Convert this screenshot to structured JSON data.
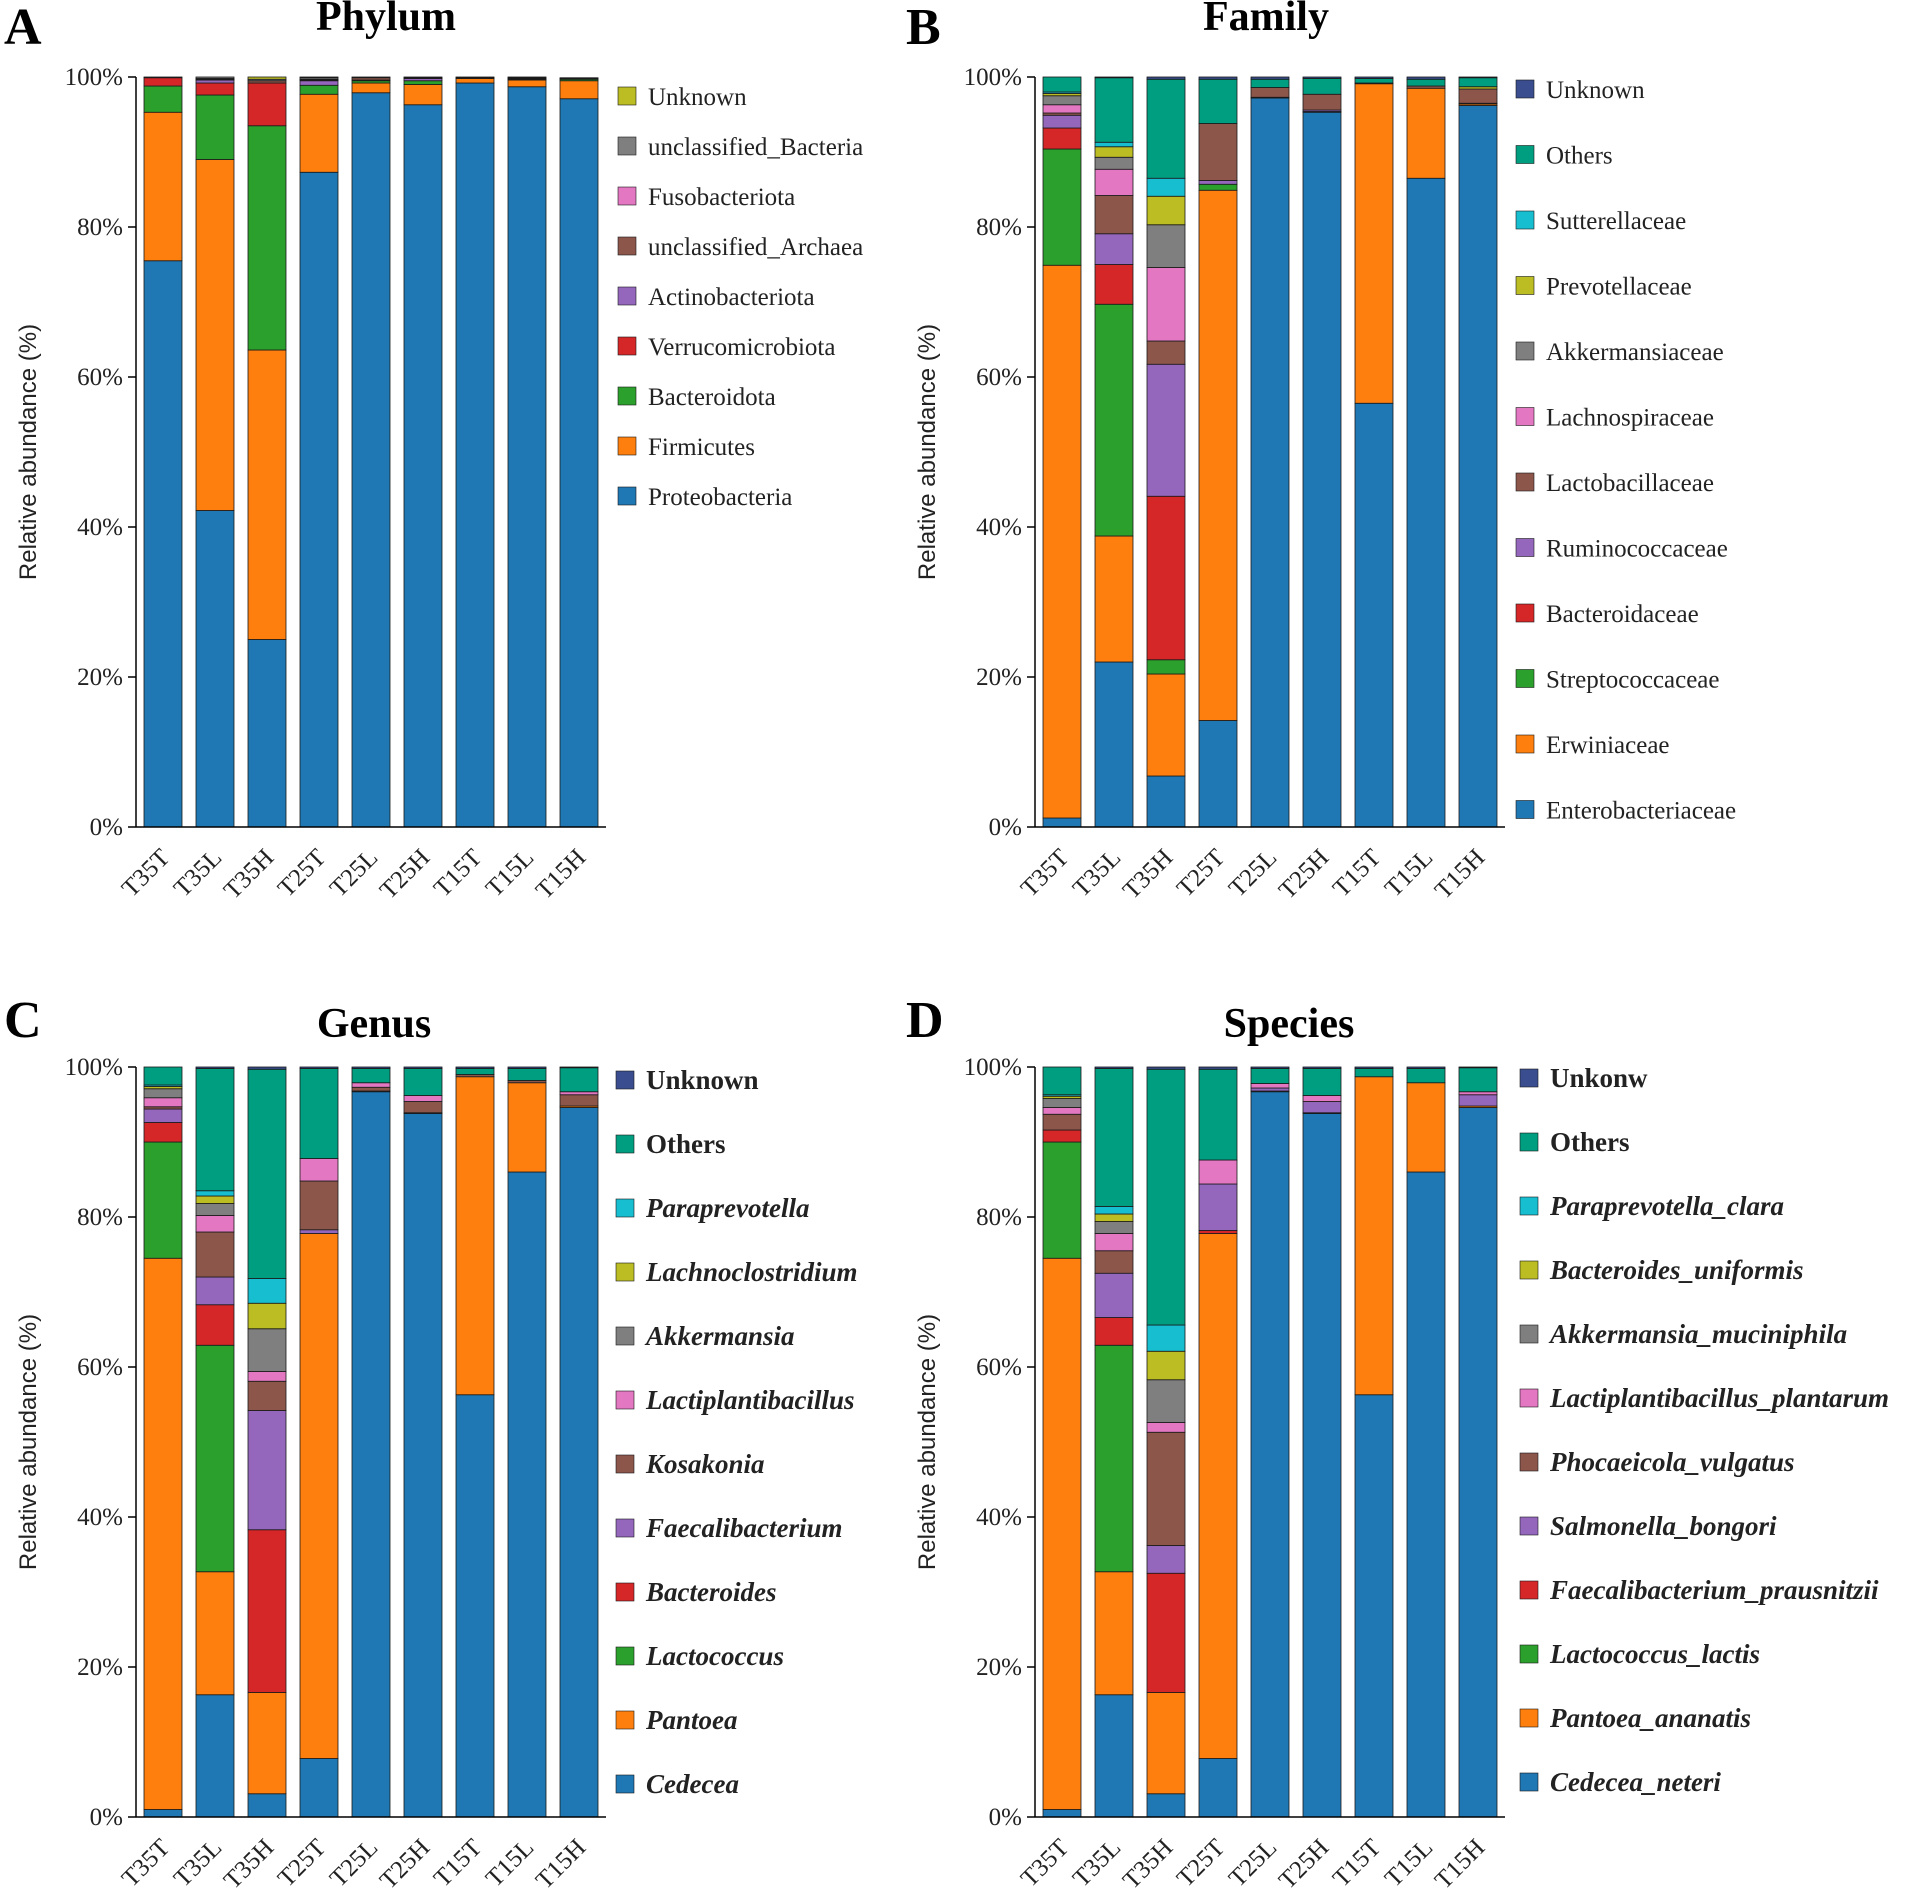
{
  "chart_data": [
    {
      "type": "bar",
      "stacked": true,
      "letter": "A",
      "title": "Phylum",
      "ylabel": "Relative abundance (%)",
      "ylim": [
        0,
        100
      ],
      "yticks": [
        "0%",
        "20%",
        "40%",
        "60%",
        "80%",
        "100%"
      ],
      "categories": [
        "T35T",
        "T35L",
        "T35H",
        "T25T",
        "T25L",
        "T25H",
        "T15T",
        "T15L",
        "T15H"
      ],
      "legend_style": "normal",
      "series": [
        {
          "name": "Proteobacteria",
          "color": "#1f77b4",
          "values": [
            75.5,
            42.2,
            25.0,
            87.3,
            97.9,
            96.3,
            99.2,
            98.7,
            97.1
          ]
        },
        {
          "name": "Firmicutes",
          "color": "#ff7f0e",
          "values": [
            19.8,
            46.8,
            38.6,
            10.4,
            1.3,
            2.7,
            0.6,
            0.9,
            2.4
          ]
        },
        {
          "name": "Bacteroidota",
          "color": "#2ca02c",
          "values": [
            3.5,
            8.6,
            29.9,
            1.2,
            0.3,
            0.5,
            0.0,
            0.1,
            0.2
          ]
        },
        {
          "name": "Verrucomicrobiota",
          "color": "#d62728",
          "values": [
            1.1,
            1.6,
            5.7,
            0.0,
            0.0,
            0.0,
            0.0,
            0.0,
            0.0
          ]
        },
        {
          "name": "Actinobacteriota",
          "color": "#9467bd",
          "values": [
            0.0,
            0.4,
            0.0,
            0.6,
            0.1,
            0.3,
            0.0,
            0.1,
            0.1
          ]
        },
        {
          "name": "unclassified_Archaea",
          "color": "#8c564b",
          "values": [
            0.1,
            0.1,
            0.3,
            0.1,
            0.3,
            0.1,
            0.1,
            0.1,
            0.1
          ]
        },
        {
          "name": "Fusobacteriota",
          "color": "#e377c2",
          "values": [
            0.0,
            0.1,
            0.0,
            0.1,
            0.0,
            0.0,
            0.0,
            0.0,
            0.0
          ]
        },
        {
          "name": "unclassified_Bacteria",
          "color": "#7f7f7f",
          "values": [
            0.0,
            0.2,
            0.2,
            0.2,
            0.1,
            0.1,
            0.1,
            0.0,
            0.0
          ]
        },
        {
          "name": "Unknown",
          "color": "#bcbd22",
          "values": [
            0.0,
            0.0,
            0.3,
            0.1,
            0.0,
            0.0,
            0.0,
            0.1,
            0.0
          ]
        }
      ]
    },
    {
      "type": "bar",
      "stacked": true,
      "letter": "B",
      "title": "Family",
      "ylabel": "Relative abundance (%)",
      "ylim": [
        0,
        100
      ],
      "yticks": [
        "0%",
        "20%",
        "40%",
        "60%",
        "80%",
        "100%"
      ],
      "categories": [
        "T35T",
        "T35L",
        "T35H",
        "T25T",
        "T25L",
        "T25H",
        "T15T",
        "T15L",
        "T15H"
      ],
      "legend_style": "normal",
      "series": [
        {
          "name": "Enterobacteriaceae",
          "color": "#1f77b4",
          "values": [
            1.2,
            22.0,
            6.8,
            14.2,
            97.2,
            95.3,
            56.5,
            86.5,
            96.2
          ]
        },
        {
          "name": "Erwiniaceae",
          "color": "#ff7f0e",
          "values": [
            73.7,
            16.8,
            13.6,
            70.7,
            0.1,
            0.1,
            42.6,
            12.0,
            0.2
          ]
        },
        {
          "name": "Streptococcaceae",
          "color": "#2ca02c",
          "values": [
            15.5,
            30.9,
            1.9,
            0.8,
            0.0,
            0.0,
            0.0,
            0.0,
            0.1
          ]
        },
        {
          "name": "Bacteroidaceae",
          "color": "#d62728",
          "values": [
            2.8,
            5.3,
            21.8,
            0.0,
            0.0,
            0.0,
            0.0,
            0.0,
            0.0
          ]
        },
        {
          "name": "Ruminococcaceae",
          "color": "#9467bd",
          "values": [
            1.7,
            4.1,
            17.6,
            0.5,
            0.0,
            0.2,
            0.0,
            0.0,
            0.0
          ]
        },
        {
          "name": "Lactobacillaceae",
          "color": "#8c564b",
          "values": [
            0.3,
            5.1,
            3.1,
            7.6,
            1.3,
            2.1,
            0.1,
            0.3,
            1.9
          ]
        },
        {
          "name": "Lachnospiraceae",
          "color": "#e377c2",
          "values": [
            1.1,
            3.5,
            9.8,
            0.0,
            0.0,
            0.0,
            0.0,
            0.0,
            0.0
          ]
        },
        {
          "name": "Akkermansiaceae",
          "color": "#7f7f7f",
          "values": [
            1.2,
            1.6,
            5.7,
            0.0,
            0.0,
            0.0,
            0.0,
            0.0,
            0.0
          ]
        },
        {
          "name": "Prevotellaceae",
          "color": "#bcbd22",
          "values": [
            0.3,
            1.4,
            3.8,
            0.0,
            0.0,
            0.0,
            0.0,
            0.0,
            0.3
          ]
        },
        {
          "name": "Sutterellaceae",
          "color": "#17becf",
          "values": [
            0.2,
            0.6,
            2.4,
            0.0,
            0.0,
            0.0,
            0.0,
            0.0,
            0.0
          ]
        },
        {
          "name": "Others",
          "color": "#009e80",
          "values": [
            2.0,
            8.6,
            13.2,
            5.9,
            1.1,
            2.1,
            0.6,
            0.9,
            1.2
          ]
        },
        {
          "name": "Unknown",
          "color": "#3a4e8f",
          "values": [
            0.0,
            0.1,
            0.3,
            0.3,
            0.3,
            0.2,
            0.2,
            0.3,
            0.1
          ]
        }
      ]
    },
    {
      "type": "bar",
      "stacked": true,
      "letter": "C",
      "title": "Genus",
      "ylabel": "Relative abundance (%)",
      "ylim": [
        0,
        100
      ],
      "yticks": [
        "0%",
        "20%",
        "40%",
        "60%",
        "80%",
        "100%"
      ],
      "categories": [
        "T35T",
        "T35L",
        "T35H",
        "T25T",
        "T25L",
        "T25H",
        "T15T",
        "T15L",
        "T15H"
      ],
      "legend_style": "bold-italic",
      "series": [
        {
          "name": "Cedecea",
          "color": "#1f77b4",
          "values": [
            1.0,
            16.3,
            3.1,
            7.8,
            96.7,
            93.8,
            56.3,
            86.0,
            94.6
          ]
        },
        {
          "name": "Pantoea",
          "color": "#ff7f0e",
          "values": [
            73.5,
            16.4,
            13.5,
            70.0,
            0.1,
            0.1,
            42.4,
            11.9,
            0.2
          ]
        },
        {
          "name": "Lactococcus",
          "color": "#2ca02c",
          "values": [
            15.5,
            30.2,
            0.0,
            0.0,
            0.0,
            0.0,
            0.0,
            0.0,
            0.0
          ]
        },
        {
          "name": "Bacteroides",
          "color": "#d62728",
          "values": [
            2.6,
            5.4,
            21.7,
            0.0,
            0.0,
            0.0,
            0.0,
            0.0,
            0.0
          ]
        },
        {
          "name": "Faecalibacterium",
          "color": "#9467bd",
          "values": [
            1.8,
            3.7,
            15.9,
            0.5,
            0.0,
            0.0,
            0.0,
            0.0,
            0.0
          ]
        },
        {
          "name": "Kosakonia",
          "color": "#8c564b",
          "values": [
            0.3,
            6.0,
            3.9,
            6.5,
            0.5,
            1.5,
            0.3,
            0.3,
            1.5
          ]
        },
        {
          "name": "Lactiplantibacillus",
          "color": "#e377c2",
          "values": [
            1.2,
            2.2,
            1.3,
            3.0,
            0.6,
            0.8,
            0.0,
            0.0,
            0.4
          ]
        },
        {
          "name": "Akkermansia",
          "color": "#7f7f7f",
          "values": [
            1.2,
            1.6,
            5.7,
            0.0,
            0.0,
            0.0,
            0.0,
            0.0,
            0.0
          ]
        },
        {
          "name": "Lachnoclostridium",
          "color": "#bcbd22",
          "values": [
            0.3,
            1.0,
            3.4,
            0.0,
            0.0,
            0.0,
            0.0,
            0.0,
            0.0
          ]
        },
        {
          "name": "Paraprevotella",
          "color": "#17becf",
          "values": [
            0.2,
            0.7,
            3.3,
            0.0,
            0.0,
            0.0,
            0.0,
            0.0,
            0.0
          ]
        },
        {
          "name": "Others",
          "color": "#009e80",
          "values": [
            2.4,
            16.3,
            27.9,
            12.0,
            1.9,
            3.6,
            0.8,
            1.6,
            3.2
          ]
        },
        {
          "name": "Unknown",
          "color": "#3a4e8f",
          "values": [
            0.0,
            0.2,
            0.3,
            0.2,
            0.2,
            0.2,
            0.2,
            0.2,
            0.1
          ]
        }
      ]
    },
    {
      "type": "bar",
      "stacked": true,
      "letter": "D",
      "title": "Species",
      "ylabel": "Relative abundance (%)",
      "ylim": [
        0,
        100
      ],
      "yticks": [
        "0%",
        "20%",
        "40%",
        "60%",
        "80%",
        "100%"
      ],
      "categories": [
        "T35T",
        "T35L",
        "T35H",
        "T25T",
        "T25L",
        "T25H",
        "T15T",
        "T15L",
        "T15H"
      ],
      "legend_style": "bold-italic",
      "series": [
        {
          "name": "Cedecea_neteri",
          "color": "#1f77b4",
          "values": [
            1.0,
            16.3,
            3.1,
            7.8,
            96.7,
            93.8,
            56.3,
            86.0,
            94.6
          ]
        },
        {
          "name": "Pantoea_ananatis",
          "color": "#ff7f0e",
          "values": [
            73.5,
            16.4,
            13.5,
            70.0,
            0.1,
            0.1,
            42.4,
            11.9,
            0.2
          ]
        },
        {
          "name": "Lactococcus_lactis",
          "color": "#2ca02c",
          "values": [
            15.5,
            30.2,
            0.0,
            0.0,
            0.0,
            0.0,
            0.0,
            0.0,
            0.0
          ]
        },
        {
          "name": "Faecalibacterium_prausnitzii",
          "color": "#d62728",
          "values": [
            1.6,
            3.7,
            15.9,
            0.4,
            0.0,
            0.0,
            0.0,
            0.0,
            0.0
          ]
        },
        {
          "name": "Salmonella_bongori",
          "color": "#9467bd",
          "values": [
            0.0,
            5.9,
            3.7,
            6.2,
            0.4,
            1.5,
            0.0,
            0.0,
            1.5
          ]
        },
        {
          "name": "Phocaeicola_vulgatus",
          "color": "#8c564b",
          "values": [
            2.1,
            3.0,
            15.1,
            0.0,
            0.0,
            0.0,
            0.0,
            0.0,
            0.0
          ]
        },
        {
          "name": "Lactiplantibacillus_plantarum",
          "color": "#e377c2",
          "values": [
            0.9,
            2.3,
            1.3,
            3.2,
            0.6,
            0.8,
            0.0,
            0.0,
            0.4
          ]
        },
        {
          "name": "Akkermansia_muciniphila",
          "color": "#7f7f7f",
          "values": [
            1.2,
            1.6,
            5.7,
            0.0,
            0.0,
            0.0,
            0.0,
            0.0,
            0.0
          ]
        },
        {
          "name": "Bacteroides_uniformis",
          "color": "#bcbd22",
          "values": [
            0.3,
            1.0,
            3.8,
            0.0,
            0.0,
            0.0,
            0.0,
            0.0,
            0.0
          ]
        },
        {
          "name": "Paraprevotella_clara",
          "color": "#17becf",
          "values": [
            0.2,
            1.0,
            3.5,
            0.0,
            0.0,
            0.0,
            0.0,
            0.0,
            0.0
          ]
        },
        {
          "name": "Others",
          "color": "#009e80",
          "values": [
            3.7,
            18.4,
            34.1,
            12.1,
            2.0,
            3.6,
            1.1,
            1.9,
            3.2
          ]
        },
        {
          "name": "Unkonw",
          "color": "#3a4e8f",
          "values": [
            0.0,
            0.2,
            0.3,
            0.3,
            0.2,
            0.2,
            0.2,
            0.2,
            0.1
          ]
        }
      ]
    }
  ]
}
